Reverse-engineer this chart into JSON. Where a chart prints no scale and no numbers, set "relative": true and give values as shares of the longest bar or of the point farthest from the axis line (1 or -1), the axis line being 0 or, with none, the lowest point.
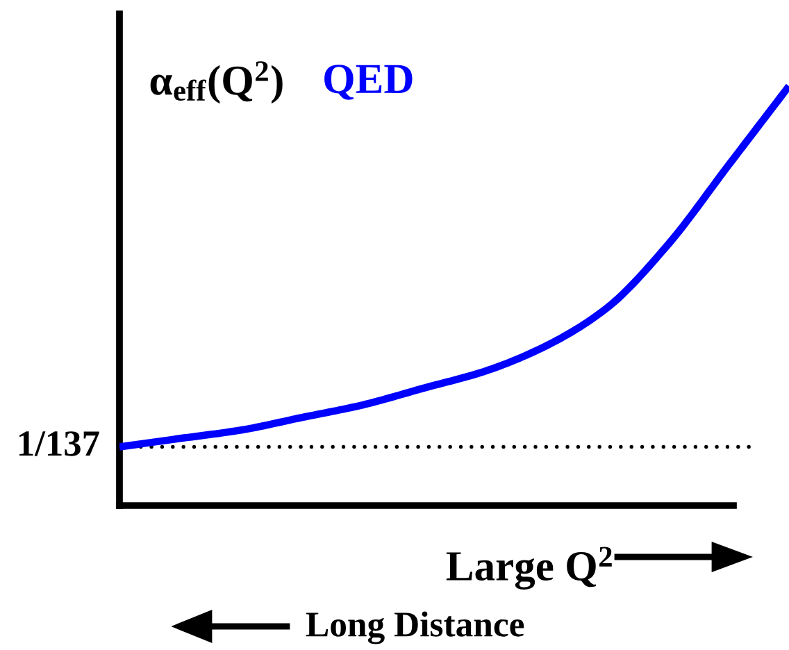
{
  "chart_data": {
    "type": "line",
    "relative": true,
    "ylabel": "α$_{eff}$(Q$^{2}$)",
    "xlabel": "Large Q$^{2}$",
    "annotations": [
      "1/137",
      "Long Distance"
    ],
    "categories": [
      null,
      null,
      null,
      null,
      null,
      null,
      null,
      null,
      null,
      null,
      null,
      null
    ],
    "series": [
      {
        "name": "QED",
        "color": "#0000ff",
        "values": [
          0.14,
          0.16,
          0.18,
          0.21,
          0.24,
          0.28,
          0.32,
          0.38,
          0.47,
          0.62,
          0.81,
          1
        ]
      }
    ],
    "ref_lines": [
      {
        "axis": "y",
        "value": 0.14,
        "line_style": "dotted",
        "color": "#000000"
      }
    ]
  }
}
